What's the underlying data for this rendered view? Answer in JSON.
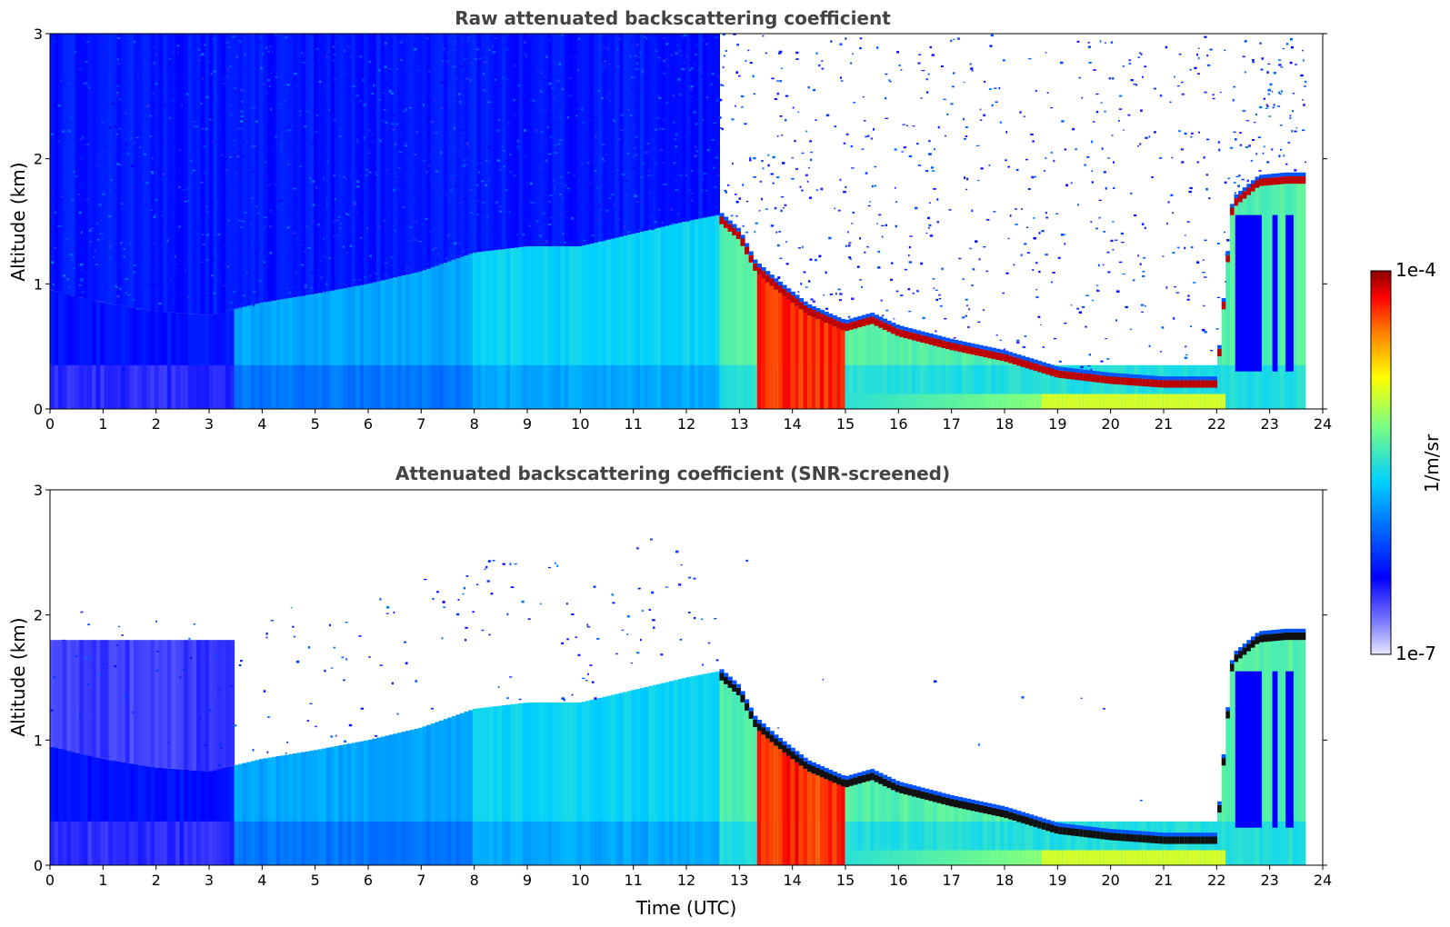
{
  "chart_data": [
    {
      "type": "heatmap",
      "title": "Raw attenuated backscattering coefficient",
      "xlabel": "",
      "ylabel": "Altitude (km)",
      "xlim": [
        0,
        24
      ],
      "ylim": [
        0,
        3
      ],
      "xticks": [
        "0",
        "1",
        "2",
        "3",
        "4",
        "5",
        "6",
        "7",
        "8",
        "9",
        "10",
        "11",
        "12",
        "13",
        "14",
        "15",
        "16",
        "17",
        "18",
        "19",
        "20",
        "21",
        "22",
        "23",
        "24"
      ],
      "yticks": [
        "0",
        "1",
        "2",
        "3"
      ],
      "data_end_time": 23.67,
      "mixed_layer_top": {
        "x": [
          0,
          1,
          2,
          3,
          4,
          5,
          6,
          7,
          8,
          9,
          10,
          11,
          12,
          12.6
        ],
        "y": [
          0.95,
          0.85,
          0.78,
          0.75,
          0.85,
          0.92,
          1.0,
          1.1,
          1.25,
          1.3,
          1.3,
          1.4,
          1.5,
          1.55
        ]
      },
      "cloud_base": {
        "x": [
          12.6,
          13.0,
          13.3,
          13.7,
          14.3,
          15.0,
          15.5,
          16.0,
          17.0,
          18.0,
          19.0,
          20.0,
          21.0,
          22.0,
          22.3,
          22.8,
          23.3,
          23.67
        ],
        "y": [
          1.5,
          1.35,
          1.1,
          0.95,
          0.75,
          0.62,
          0.68,
          0.58,
          0.47,
          0.38,
          0.25,
          0.2,
          0.17,
          0.17,
          1.6,
          1.78,
          1.8,
          1.8
        ]
      },
      "noise": "dense",
      "grid": false
    },
    {
      "type": "heatmap",
      "title": "Attenuated backscattering coefficient (SNR-screened)",
      "xlabel": "Time (UTC)",
      "ylabel": "Altitude (km)",
      "xlim": [
        0,
        24
      ],
      "ylim": [
        0,
        3
      ],
      "xticks": [
        "0",
        "1",
        "2",
        "3",
        "4",
        "5",
        "6",
        "7",
        "8",
        "9",
        "10",
        "11",
        "12",
        "13",
        "14",
        "15",
        "16",
        "17",
        "18",
        "19",
        "20",
        "21",
        "22",
        "23",
        "24"
      ],
      "yticks": [
        "0",
        "1",
        "2",
        "3"
      ],
      "data_end_time": 23.67,
      "mixed_layer_top": {
        "x": [
          0,
          1,
          2,
          3,
          4,
          5,
          6,
          7,
          8,
          9,
          10,
          11,
          12,
          12.6
        ],
        "y": [
          0.95,
          0.85,
          0.78,
          0.75,
          0.85,
          0.92,
          1.0,
          1.1,
          1.25,
          1.3,
          1.3,
          1.4,
          1.5,
          1.55
        ]
      },
      "cloud_base": {
        "x": [
          12.6,
          13.0,
          13.3,
          13.7,
          14.3,
          15.0,
          15.5,
          16.0,
          17.0,
          18.0,
          19.0,
          20.0,
          21.0,
          22.0,
          22.3,
          22.8,
          23.3,
          23.67
        ],
        "y": [
          1.5,
          1.35,
          1.1,
          0.95,
          0.75,
          0.62,
          0.68,
          0.58,
          0.47,
          0.38,
          0.25,
          0.2,
          0.17,
          0.17,
          1.6,
          1.78,
          1.8,
          1.8
        ]
      },
      "noise": "screened",
      "grid": false
    }
  ],
  "colorbar": {
    "label": "1/m/sr",
    "max_label": "1e-4",
    "min_label": "1e-7",
    "range": [
      1e-07,
      0.0001
    ],
    "scale": "log",
    "colormap": [
      "#e8e8ff",
      "#0000ff",
      "#00ccff",
      "#7fff7f",
      "#ffff00",
      "#ff7f00",
      "#ff0000",
      "#8b0000"
    ]
  }
}
